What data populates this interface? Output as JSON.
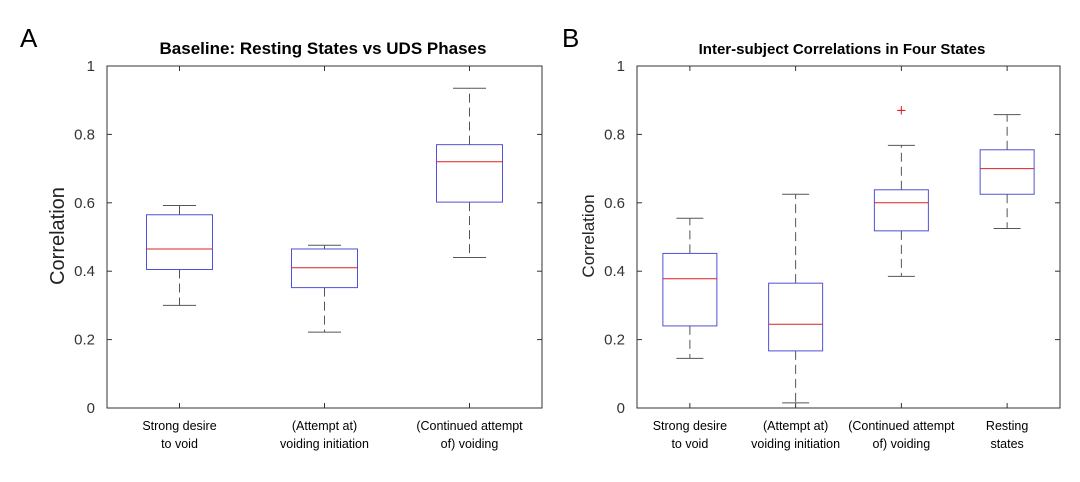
{
  "chart_data": [
    {
      "panel_label": "A",
      "type": "box",
      "title": "Baseline: Resting States vs UDS Phases",
      "ylabel": "Correlation",
      "xlabel": "",
      "ylim": [
        0,
        1
      ],
      "yticks": [
        "0",
        "0.2",
        "0.4",
        "0.6",
        "0.8",
        "1"
      ],
      "categories": [
        [
          "Strong desire",
          "to void"
        ],
        [
          "(Attempt at)",
          "voiding initiation"
        ],
        [
          "(Continued attempt",
          "of) voiding"
        ]
      ],
      "boxes": [
        {
          "min": 0.3,
          "q1": 0.405,
          "median": 0.465,
          "q3": 0.565,
          "max": 0.592,
          "outliers": []
        },
        {
          "min": 0.222,
          "q1": 0.352,
          "median": 0.41,
          "q3": 0.465,
          "max": 0.476,
          "outliers": []
        },
        {
          "min": 0.44,
          "q1": 0.602,
          "median": 0.72,
          "q3": 0.77,
          "max": 0.935,
          "outliers": []
        }
      ],
      "colors": {
        "box": "#5050d8",
        "median": "#e02020",
        "whisker": "#555555",
        "outlier": "#e02020",
        "axes": "#333333"
      }
    },
    {
      "panel_label": "B",
      "type": "box",
      "title": "Inter-subject Correlations in Four States",
      "ylabel": "Correlation",
      "xlabel": "",
      "ylim": [
        0,
        1
      ],
      "yticks": [
        "0",
        "0.2",
        "0.4",
        "0.6",
        "0.8",
        "1"
      ],
      "categories": [
        [
          "Strong desire",
          "to void"
        ],
        [
          "(Attempt at)",
          "voiding initiation"
        ],
        [
          "(Continued attempt",
          "of) voiding"
        ],
        [
          "Resting",
          "states"
        ]
      ],
      "boxes": [
        {
          "min": 0.145,
          "q1": 0.24,
          "median": 0.378,
          "q3": 0.452,
          "max": 0.555,
          "outliers": []
        },
        {
          "min": 0.015,
          "q1": 0.167,
          "median": 0.245,
          "q3": 0.365,
          "max": 0.625,
          "outliers": []
        },
        {
          "min": 0.385,
          "q1": 0.518,
          "median": 0.6,
          "q3": 0.638,
          "max": 0.768,
          "outliers": [
            0.87
          ]
        },
        {
          "min": 0.525,
          "q1": 0.625,
          "median": 0.7,
          "q3": 0.755,
          "max": 0.858,
          "outliers": []
        }
      ],
      "colors": {
        "box": "#5050d8",
        "median": "#e02020",
        "whisker": "#555555",
        "outlier": "#e02020",
        "axes": "#333333"
      }
    }
  ]
}
